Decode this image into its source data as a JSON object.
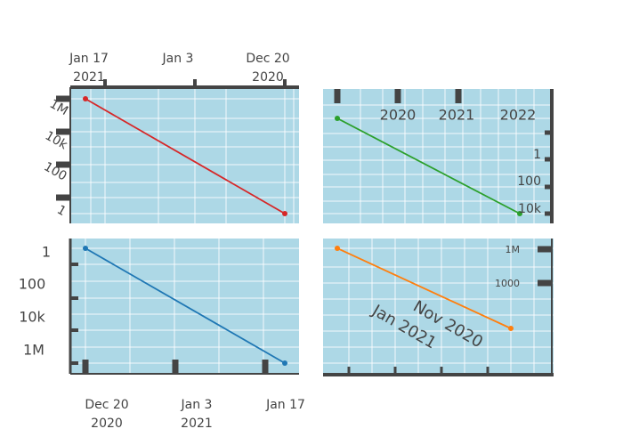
{
  "colors": {
    "plot_bg": "#add8e6",
    "grid": "#ffffff",
    "axis": "#444444",
    "series": [
      "#d62728",
      "#2ca02c",
      "#1f77b4",
      "#ff7f0e"
    ]
  },
  "chart_data": [
    {
      "panel": "top-left",
      "type": "line",
      "x_axis": {
        "type": "date",
        "side": "top",
        "reversed": true,
        "ticks": [
          {
            "value": "2021-01-17",
            "label": [
              "Jan 17",
              "2021"
            ]
          },
          {
            "value": "2021-01-03",
            "label": [
              "Jan 3",
              ""
            ]
          },
          {
            "value": "2020-12-20",
            "label": [
              "Dec 20",
              "2020"
            ]
          }
        ]
      },
      "y_axis": {
        "type": "log",
        "side": "left",
        "ticks": [
          {
            "value": 1000000,
            "label": "1M"
          },
          {
            "value": 10000,
            "label": "10k"
          },
          {
            "value": 100,
            "label": "100"
          },
          {
            "value": 1,
            "label": "1"
          }
        ]
      },
      "series": [
        {
          "x": [
            "2021-01-17",
            "2020-12-20"
          ],
          "y": [
            1000000,
            1
          ],
          "mode": "lines+markers"
        }
      ]
    },
    {
      "panel": "top-right",
      "type": "line",
      "x_axis": {
        "type": "date",
        "side": "top",
        "ticks": [
          {
            "value": "2020",
            "label": "2020"
          },
          {
            "value": "2021",
            "label": "2021"
          },
          {
            "value": "2022",
            "label": "2022"
          }
        ]
      },
      "y_axis": {
        "type": "log",
        "side": "right",
        "reversed": true,
        "ticks": [
          {
            "value": 1,
            "label": "1"
          },
          {
            "value": 100,
            "label": "100"
          },
          {
            "value": 10000,
            "label": "10k"
          }
        ]
      },
      "series": [
        {
          "x": [
            "2019-11-20",
            "2022-01-20"
          ],
          "y": [
            1,
            10000
          ],
          "mode": "lines+markers"
        }
      ]
    },
    {
      "panel": "bottom-left",
      "type": "line",
      "x_axis": {
        "type": "date",
        "side": "bottom",
        "ticks": [
          {
            "value": "2020-12-20",
            "label": [
              "Dec 20",
              "2020"
            ]
          },
          {
            "value": "2021-01-03",
            "label": [
              "Jan 3",
              "2021"
            ]
          },
          {
            "value": "2021-01-17",
            "label": [
              "Jan 17",
              ""
            ]
          }
        ]
      },
      "y_axis": {
        "type": "log",
        "side": "left",
        "reversed": true,
        "ticks": [
          {
            "value": 1,
            "label": "1"
          },
          {
            "value": 100,
            "label": "100"
          },
          {
            "value": 10000,
            "label": "10k"
          },
          {
            "value": 1000000,
            "label": "1M"
          }
        ]
      },
      "series": [
        {
          "x": [
            "2020-12-20",
            "2021-01-17"
          ],
          "y": [
            1,
            1000000
          ],
          "mode": "lines+markers"
        }
      ]
    },
    {
      "panel": "bottom-right",
      "type": "line",
      "x_axis": {
        "type": "date",
        "side": "bottom",
        "reversed": true,
        "ticks": [
          {
            "value": "2021-01-01",
            "label": "Jan 2021"
          },
          {
            "value": "2020-11-01",
            "label": "Nov 2020"
          }
        ]
      },
      "y_axis": {
        "type": "log",
        "side": "right",
        "ticks": [
          {
            "value": 1000000,
            "label": "1M"
          },
          {
            "value": 1000,
            "label": "1000"
          }
        ]
      },
      "series": [
        {
          "x": [
            "2021-01-17",
            "2020-12-20"
          ],
          "y": [
            1000000,
            1
          ],
          "mode": "lines+markers"
        }
      ]
    }
  ]
}
